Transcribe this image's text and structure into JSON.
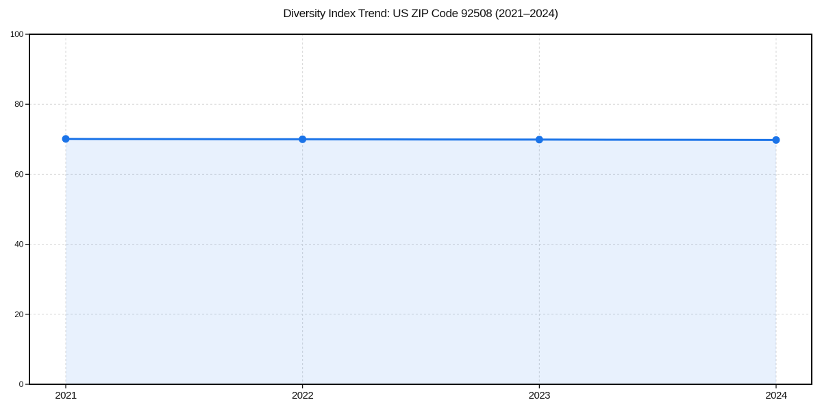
{
  "chart_data": {
    "type": "area",
    "title": "Diversity Index Trend: US ZIP Code 92508 (2021–2024)",
    "xlabel": "",
    "ylabel": "",
    "categories": [
      "2021",
      "2022",
      "2023",
      "2024"
    ],
    "series": [
      {
        "name": "Diversity Index",
        "values": [
          70.1,
          70.0,
          69.9,
          69.8
        ]
      }
    ],
    "ylim": [
      0,
      100
    ],
    "yticks": [
      0,
      20,
      40,
      60,
      80,
      100
    ],
    "grid": true,
    "grid_style": "dashed",
    "legend_position": "none",
    "colors": {
      "line": "#1a73e8",
      "marker": "#1a73e8",
      "fill": "rgba(26,115,232,0.10)",
      "gridline": "#d6d6d6",
      "spine": "#000000",
      "text": "#111111",
      "background": "#ffffff"
    }
  }
}
